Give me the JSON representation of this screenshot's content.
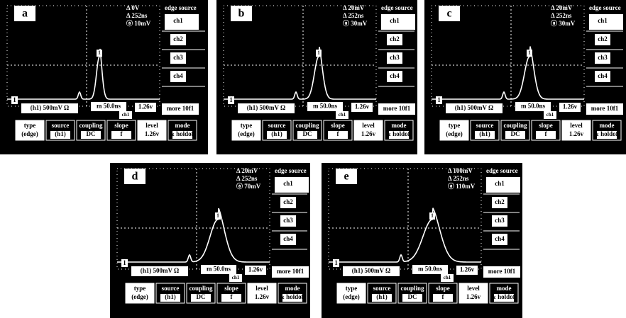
{
  "panels": [
    {
      "label": "a",
      "readings": [
        "Δ 0V",
        "Δ 252ns",
        "ⓐ 10mV"
      ]
    },
    {
      "label": "b",
      "readings": [
        "Δ 20mV",
        "Δ 252ns",
        "ⓐ 30mV"
      ]
    },
    {
      "label": "c",
      "readings": [
        "Δ 20mV",
        "Δ 252ns",
        "ⓐ 30mV"
      ]
    },
    {
      "label": "d",
      "readings": [
        "Δ 20mV",
        "Δ 252ns",
        "ⓐ 70mV"
      ]
    },
    {
      "label": "e",
      "readings": [
        "Δ 100mV",
        "Δ 252ns",
        "ⓐ 110mV"
      ]
    }
  ],
  "screen": {
    "menu_title": "edge source",
    "channels": [
      "ch1",
      "ch2",
      "ch3",
      "ch4"
    ],
    "marker": "1",
    "trace_marker": "1",
    "channel_scale": "(h1) 500mV Ω",
    "timebase": "m 50.0ns",
    "trigger_channel": "ch1",
    "trigger_level": "1.26v",
    "more": "more 10f1",
    "softkeys": [
      [
        "type",
        "(edge)"
      ],
      [
        "source",
        "(h1)"
      ],
      [
        "coupling",
        "DC"
      ],
      [
        "slope",
        "f"
      ],
      [
        "level",
        "1.26v"
      ],
      [
        "mode",
        "& holdoff"
      ]
    ]
  }
}
